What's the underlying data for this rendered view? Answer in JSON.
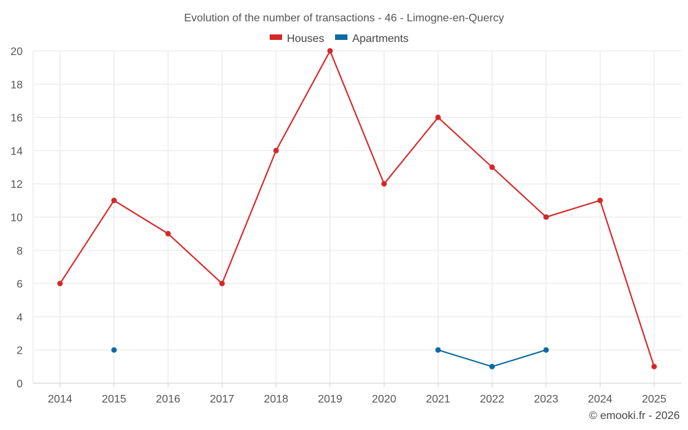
{
  "chart_data": {
    "type": "line",
    "title": "Evolution of the number of transactions - 46 - Limogne-en-Quercy",
    "categories": [
      "2014",
      "2015",
      "2016",
      "2017",
      "2018",
      "2019",
      "2020",
      "2021",
      "2022",
      "2023",
      "2024",
      "2025"
    ],
    "series": [
      {
        "name": "Houses",
        "color": "#d62728",
        "values": [
          6,
          11,
          9,
          6,
          14,
          20,
          12,
          16,
          13,
          10,
          11,
          1
        ]
      },
      {
        "name": "Apartments",
        "color": "#0b6aa2",
        "values": [
          null,
          2,
          null,
          null,
          null,
          null,
          null,
          2,
          1,
          2,
          null,
          null
        ]
      }
    ],
    "ylim": [
      0,
      20
    ],
    "yticks": [
      0,
      2,
      4,
      6,
      8,
      10,
      12,
      14,
      16,
      18,
      20
    ],
    "grid": true,
    "legend": "top-center",
    "xlabel": "",
    "ylabel": ""
  },
  "credit": "© emooki.fr - 2026"
}
